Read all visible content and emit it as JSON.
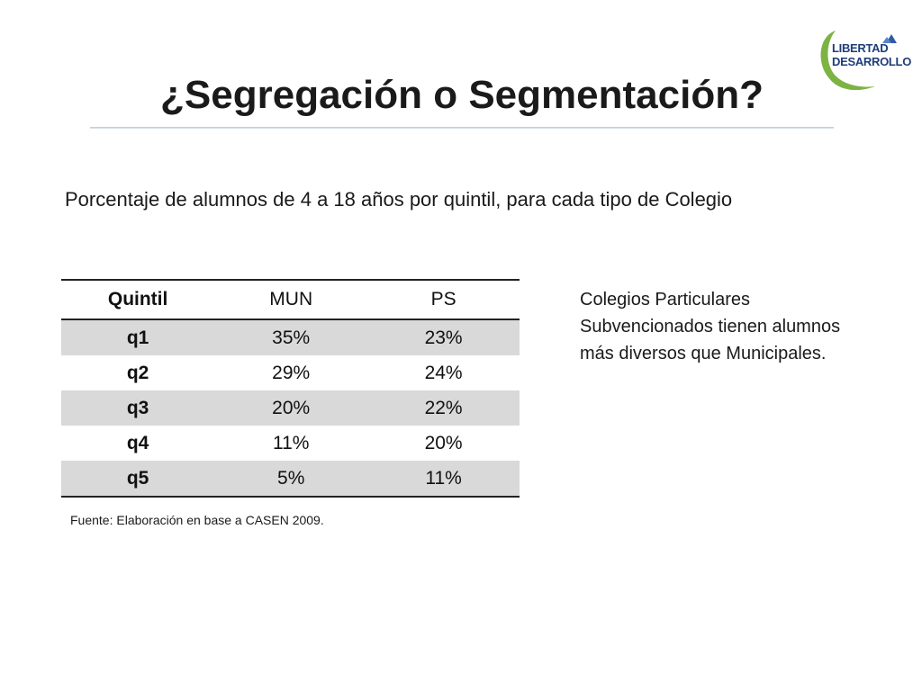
{
  "slide": {
    "title": "¿Segregación o Segmentación?",
    "subtitle": "Porcentaje de alumnos de 4 a 18 años por quintil, para cada tipo de Colegio"
  },
  "logo": {
    "line1": "LIBERTAD",
    "line2": "DESARROLLO",
    "colors": {
      "text": "#1f3d7a",
      "swoosh": "#7cb342",
      "mark": "#2e5aa8"
    }
  },
  "table": {
    "headers": [
      "Quintil",
      "MUN",
      "PS"
    ],
    "rows": [
      [
        "q1",
        "35%",
        "23%"
      ],
      [
        "q2",
        "29%",
        "24%"
      ],
      [
        "q3",
        "20%",
        "22%"
      ],
      [
        "q4",
        "11%",
        "20%"
      ],
      [
        "q5",
        "5%",
        "11%"
      ]
    ],
    "stripe_color": "#d9d9d9"
  },
  "note": {
    "lines": [
      "Colegios Particulares",
      "Subvencionados tienen alumnos",
      "más diversos que Municipales."
    ]
  },
  "source": "Fuente: Elaboración en base a CASEN 2009."
}
